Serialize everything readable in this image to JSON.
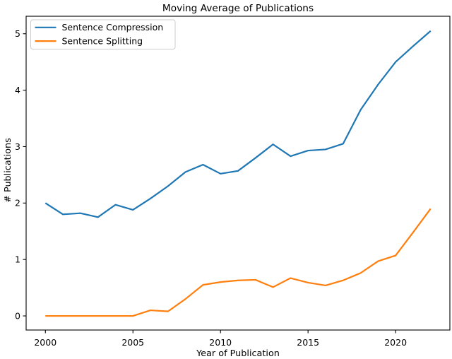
{
  "figure": {
    "background": "#ffffff"
  },
  "chart_data": {
    "type": "line",
    "title": "Moving Average of Publications",
    "xlabel": "Year of Publication",
    "ylabel": "# Publications",
    "x": [
      2000,
      2001,
      2002,
      2003,
      2004,
      2005,
      2006,
      2007,
      2008,
      2009,
      2010,
      2011,
      2012,
      2013,
      2014,
      2015,
      2016,
      2017,
      2018,
      2019,
      2020,
      2021,
      2022
    ],
    "series": [
      {
        "name": "Sentence Compression",
        "color": "#1f77b4",
        "values": [
          2.0,
          1.8,
          1.82,
          1.75,
          1.97,
          1.88,
          2.08,
          2.3,
          2.55,
          2.68,
          2.52,
          2.57,
          2.8,
          3.04,
          2.83,
          2.93,
          2.95,
          3.05,
          3.65,
          4.1,
          4.5,
          4.78,
          5.05
        ]
      },
      {
        "name": "Sentence Splitting",
        "color": "#ff7f0e",
        "values": [
          0.0,
          0.0,
          0.0,
          0.0,
          0.0,
          0.0,
          0.1,
          0.08,
          0.3,
          0.55,
          0.6,
          0.63,
          0.64,
          0.51,
          0.67,
          0.59,
          0.54,
          0.63,
          0.76,
          0.97,
          1.07,
          1.48,
          1.9
        ]
      }
    ],
    "xticks": [
      2000,
      2005,
      2010,
      2015,
      2020
    ],
    "yticks": [
      0,
      1,
      2,
      3,
      4,
      5
    ],
    "xlim": [
      1998.9,
      2023.1
    ],
    "ylim": [
      -0.25,
      5.31
    ],
    "grid": false,
    "legend": {
      "position": "upper-left",
      "entries": [
        "Sentence Compression",
        "Sentence Splitting"
      ]
    },
    "axis_color": "#000000",
    "text_color": "#000000",
    "legend_border_color": "#cccccc"
  }
}
